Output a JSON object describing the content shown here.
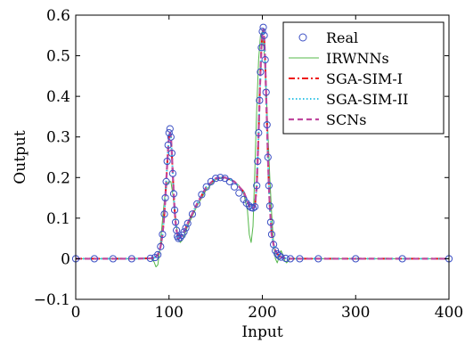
{
  "chart_data": {
    "type": "line",
    "xlabel": "Input",
    "ylabel": "Output",
    "xlim": [
      0,
      400
    ],
    "ylim": [
      -0.1,
      0.6
    ],
    "x_ticks": [
      0,
      100,
      200,
      300,
      400
    ],
    "y_ticks": [
      -0.1,
      0,
      0.1,
      0.2,
      0.3,
      0.4,
      0.5,
      0.6
    ],
    "x_tick_labels": [
      "0",
      "100",
      "200",
      "300",
      "400"
    ],
    "y_tick_labels": [
      "−0.1",
      "0",
      "0.1",
      "0.2",
      "0.3",
      "0.4",
      "0.5",
      "0.6"
    ],
    "grid": false,
    "legend_position": "top-right",
    "colors": {
      "Real": "#3b4fc4",
      "IRWNNs": "#55b84a",
      "SGA-SIM-I": "#ee1111",
      "SGA-SIM-II": "#33c3e6",
      "SCNs": "#c0489e"
    },
    "series": [
      {
        "name": "Real",
        "style": "circle-markers",
        "x": [
          0,
          20,
          40,
          60,
          80,
          85,
          88,
          91,
          93,
          95,
          96,
          97,
          98,
          99,
          100,
          101,
          102,
          103,
          104,
          105,
          106,
          107,
          108,
          109,
          110,
          112,
          114,
          116,
          118,
          120,
          125,
          130,
          135,
          140,
          145,
          150,
          155,
          160,
          165,
          170,
          175,
          180,
          183,
          186,
          188,
          190,
          192,
          194,
          195,
          196,
          197,
          198,
          199,
          200,
          201,
          202,
          203,
          204,
          205,
          206,
          207,
          208,
          209,
          210,
          212,
          214,
          216,
          218,
          220,
          225,
          230,
          240,
          260,
          300,
          350,
          400
        ],
        "y": [
          0,
          0,
          0,
          0,
          0.001,
          0.003,
          0.01,
          0.03,
          0.06,
          0.11,
          0.15,
          0.19,
          0.24,
          0.28,
          0.31,
          0.32,
          0.3,
          0.26,
          0.21,
          0.16,
          0.12,
          0.09,
          0.07,
          0.055,
          0.05,
          0.052,
          0.058,
          0.066,
          0.076,
          0.087,
          0.11,
          0.135,
          0.158,
          0.177,
          0.19,
          0.198,
          0.2,
          0.198,
          0.19,
          0.177,
          0.162,
          0.146,
          0.137,
          0.13,
          0.126,
          0.125,
          0.128,
          0.18,
          0.24,
          0.31,
          0.39,
          0.46,
          0.52,
          0.56,
          0.57,
          0.55,
          0.49,
          0.41,
          0.33,
          0.25,
          0.18,
          0.13,
          0.09,
          0.06,
          0.035,
          0.02,
          0.012,
          0.007,
          0.004,
          0.001,
          0,
          0,
          0,
          0,
          0,
          0
        ]
      },
      {
        "name": "IRWNNs",
        "style": "solid",
        "x": [
          0,
          60,
          80,
          84,
          86,
          88,
          90,
          92,
          94,
          96,
          98,
          100,
          102,
          104,
          106,
          108,
          110,
          112,
          114,
          116,
          118,
          120,
          130,
          140,
          150,
          160,
          170,
          175,
          180,
          184,
          186,
          188,
          190,
          192,
          194,
          196,
          198,
          200,
          202,
          204,
          206,
          208,
          210,
          212,
          214,
          216,
          218,
          220,
          222,
          224,
          226,
          230,
          240,
          260,
          300,
          400
        ],
        "y": [
          0,
          0,
          0.002,
          -0.008,
          -0.02,
          -0.015,
          0.02,
          0.07,
          0.12,
          0.165,
          0.185,
          0.19,
          0.19,
          0.16,
          0.12,
          0.08,
          0.05,
          0.04,
          0.045,
          0.055,
          0.068,
          0.08,
          0.13,
          0.17,
          0.195,
          0.2,
          0.19,
          0.18,
          0.16,
          0.12,
          0.06,
          0.04,
          0.08,
          0.22,
          0.37,
          0.49,
          0.55,
          0.56,
          0.51,
          0.42,
          0.31,
          0.2,
          0.11,
          0.04,
          0.0,
          -0.01,
          0.005,
          0.02,
          0.01,
          -0.005,
          -0.01,
          0.0,
          0.0,
          0,
          0,
          0
        ]
      },
      {
        "name": "SGA-SIM-I",
        "style": "dash-dot",
        "x": [
          0,
          60,
          80,
          85,
          88,
          91,
          93,
          95,
          97,
          99,
          100,
          101,
          102,
          103,
          104,
          105,
          106,
          107,
          108,
          110,
          112,
          114,
          116,
          118,
          120,
          130,
          140,
          150,
          160,
          170,
          180,
          186,
          188,
          190,
          192,
          194,
          196,
          197,
          198,
          199,
          200,
          201,
          202,
          203,
          204,
          205,
          206,
          207,
          208,
          210,
          212,
          214,
          216,
          218,
          220,
          225,
          230,
          240,
          300,
          400
        ],
        "y": [
          0,
          0,
          0.001,
          0.003,
          0.01,
          0.03,
          0.06,
          0.11,
          0.19,
          0.27,
          0.3,
          0.31,
          0.3,
          0.26,
          0.21,
          0.16,
          0.12,
          0.09,
          0.07,
          0.05,
          0.052,
          0.058,
          0.066,
          0.076,
          0.087,
          0.135,
          0.177,
          0.198,
          0.2,
          0.19,
          0.165,
          0.13,
          0.126,
          0.125,
          0.128,
          0.18,
          0.31,
          0.39,
          0.46,
          0.52,
          0.555,
          0.565,
          0.545,
          0.49,
          0.41,
          0.33,
          0.25,
          0.18,
          0.13,
          0.06,
          0.035,
          0.02,
          0.012,
          0.007,
          0.004,
          0.001,
          0,
          0,
          0,
          0
        ]
      },
      {
        "name": "SGA-SIM-II",
        "style": "dotted",
        "x": [
          0,
          60,
          80,
          85,
          88,
          91,
          93,
          95,
          97,
          99,
          100,
          101,
          102,
          103,
          104,
          105,
          106,
          107,
          108,
          110,
          112,
          114,
          116,
          118,
          120,
          130,
          140,
          150,
          160,
          170,
          180,
          186,
          188,
          190,
          192,
          194,
          196,
          197,
          198,
          199,
          200,
          201,
          202,
          203,
          204,
          205,
          206,
          207,
          208,
          210,
          212,
          214,
          216,
          218,
          220,
          225,
          230,
          240,
          300,
          400
        ],
        "y": [
          0,
          0,
          0.001,
          0.003,
          0.01,
          0.03,
          0.06,
          0.11,
          0.19,
          0.27,
          0.3,
          0.31,
          0.3,
          0.26,
          0.21,
          0.16,
          0.12,
          0.09,
          0.07,
          0.05,
          0.052,
          0.058,
          0.066,
          0.076,
          0.087,
          0.135,
          0.177,
          0.198,
          0.2,
          0.19,
          0.165,
          0.13,
          0.126,
          0.125,
          0.128,
          0.18,
          0.31,
          0.39,
          0.46,
          0.52,
          0.555,
          0.565,
          0.545,
          0.49,
          0.41,
          0.33,
          0.25,
          0.18,
          0.13,
          0.06,
          0.035,
          0.02,
          0.012,
          0.007,
          0.004,
          0.001,
          0,
          0,
          0,
          0
        ]
      },
      {
        "name": "SCNs",
        "style": "dashed",
        "x": [
          0,
          60,
          80,
          85,
          88,
          91,
          93,
          95,
          97,
          99,
          100,
          101,
          102,
          103,
          104,
          105,
          106,
          107,
          108,
          110,
          112,
          114,
          116,
          118,
          120,
          130,
          140,
          150,
          160,
          170,
          180,
          186,
          188,
          190,
          192,
          194,
          196,
          197,
          198,
          199,
          200,
          201,
          202,
          203,
          204,
          205,
          206,
          207,
          208,
          210,
          212,
          214,
          216,
          218,
          220,
          225,
          230,
          240,
          300,
          400
        ],
        "y": [
          0,
          0,
          0.001,
          0.003,
          0.01,
          0.03,
          0.06,
          0.11,
          0.19,
          0.27,
          0.3,
          0.31,
          0.3,
          0.26,
          0.21,
          0.16,
          0.12,
          0.09,
          0.07,
          0.05,
          0.052,
          0.058,
          0.066,
          0.076,
          0.087,
          0.135,
          0.177,
          0.198,
          0.2,
          0.19,
          0.165,
          0.13,
          0.126,
          0.125,
          0.128,
          0.18,
          0.31,
          0.39,
          0.46,
          0.52,
          0.555,
          0.565,
          0.545,
          0.49,
          0.41,
          0.33,
          0.25,
          0.18,
          0.13,
          0.06,
          0.035,
          0.02,
          0.012,
          0.007,
          0.004,
          0.001,
          0,
          0,
          0,
          0
        ]
      }
    ]
  }
}
